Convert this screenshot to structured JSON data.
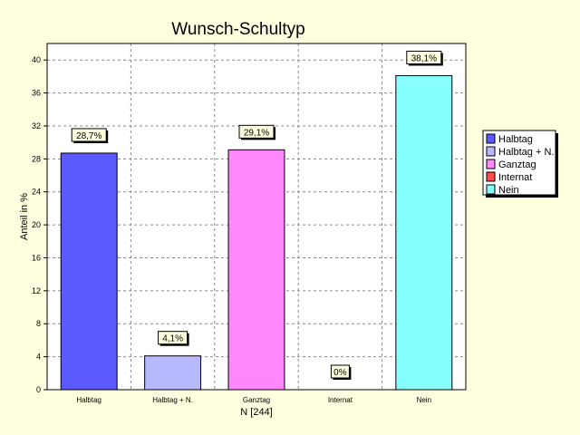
{
  "chart_data": {
    "type": "bar",
    "title": "Wunsch-Schultyp",
    "xlabel": "N [244]",
    "ylabel": "Anteil in %",
    "ylim": [
      0,
      42
    ],
    "yticks": [
      0,
      4,
      8,
      12,
      16,
      20,
      24,
      28,
      32,
      36,
      40
    ],
    "grid": true,
    "legend_position": "right",
    "categories": [
      "Halbtag",
      "Halbtag + N.",
      "Ganztag",
      "Internat",
      "Nein"
    ],
    "values": [
      28.7,
      4.1,
      29.1,
      0,
      38.1
    ],
    "value_labels": [
      "28,7%",
      "4,1%",
      "29,1%",
      "0%",
      "38,1%"
    ],
    "legend": [
      "Halbtag",
      "Halbtag + N.",
      "Ganztag",
      "Internat",
      "Nein"
    ],
    "colors": [
      "#5a5aff",
      "#b8b8ff",
      "#ff88ff",
      "#ff4d4d",
      "#88ffff"
    ]
  }
}
